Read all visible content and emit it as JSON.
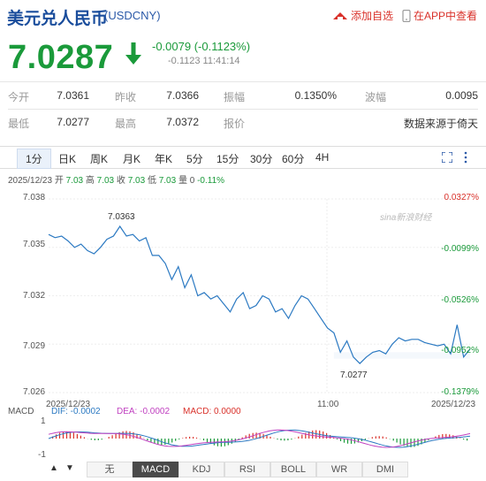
{
  "header": {
    "name": "美元兑人民币",
    "code": "(USDCNY)",
    "add_label": "添加自选",
    "app_label": "在APP中查看"
  },
  "quote": {
    "price": "7.0287",
    "change": "-0.0079 (-0.1123%)",
    "sub": "-0.1123 11:41:14"
  },
  "stats": {
    "row1": [
      {
        "label": "今开",
        "value": "7.0361"
      },
      {
        "label": "昨收",
        "value": "7.0366"
      },
      {
        "label": "振幅",
        "value": "0.1350%"
      },
      {
        "label": "波幅",
        "value": "0.0095"
      }
    ],
    "row2": [
      {
        "label": "最低",
        "value": "7.0277"
      },
      {
        "label": "最高",
        "value": "7.0372"
      },
      {
        "label": "报价",
        "value": "数据来源于倚天"
      }
    ]
  },
  "tabs": [
    "1分",
    "日K",
    "周K",
    "月K",
    "年K",
    "5分",
    "15分",
    "30分",
    "60分",
    "4H"
  ],
  "datebar": {
    "date": "2025/12/23",
    "open_l": "开",
    "open_v": "7.03",
    "high_l": "高",
    "high_v": "7.03",
    "close_l": "收",
    "close_v": "7.03",
    "low_l": "低",
    "low_v": "7.03",
    "vol_l": "量",
    "vol_v": "0",
    "pct": "-0.11%"
  },
  "watermark": "sina新浪财经",
  "chart_data": {
    "type": "line",
    "title": "",
    "yticks": [
      "7.038",
      "7.035",
      "7.032",
      "7.029",
      "7.026"
    ],
    "ylim": [
      7.026,
      7.038
    ],
    "pct_ticks": [
      "0.0327%",
      "-0.0099%",
      "-0.0526%",
      "-0.0952%",
      "-0.1379%"
    ],
    "xticks": [
      "2025/12/23",
      "11:00",
      "2025/12/23"
    ],
    "annotations": [
      {
        "text": "7.0363"
      },
      {
        "text": "7.0277"
      }
    ],
    "series": [
      {
        "values": [
          7.0358,
          7.0356,
          7.0357,
          7.0354,
          7.035,
          7.0352,
          7.0348,
          7.0346,
          7.035,
          7.0355,
          7.0357,
          7.0363,
          7.0357,
          7.0358,
          7.0354,
          7.0356,
          7.0345,
          7.0345,
          7.034,
          7.033,
          7.0338,
          7.0325,
          7.0333,
          7.032,
          7.0322,
          7.0318,
          7.032,
          7.0315,
          7.031,
          7.0318,
          7.0322,
          7.0312,
          7.0314,
          7.032,
          7.0318,
          7.031,
          7.0312,
          7.0306,
          7.0314,
          7.032,
          7.0318,
          7.0312,
          7.0306,
          7.03,
          7.0297,
          7.0285,
          7.0292,
          7.0282,
          7.0278,
          7.0282,
          7.0285,
          7.0286,
          7.0284,
          7.029,
          7.0294,
          7.0292,
          7.0293,
          7.0293,
          7.0291,
          7.029,
          7.0289,
          7.029,
          7.0284,
          7.0302,
          7.0282,
          7.0287
        ]
      }
    ]
  },
  "indicator": {
    "name": "MACD",
    "dif": "DIF: -0.0002",
    "dea": "DEA: -0.0002",
    "macd": "MACD: 0.0000",
    "top": "1",
    "bottom": "-1"
  },
  "buttons": [
    "无",
    "MACD",
    "KDJ",
    "RSI",
    "BOLL",
    "WR",
    "DMI"
  ],
  "colors": {
    "up": "#d9312a",
    "down": "#1a9a3a",
    "line": "#2b79c2",
    "blue": "#1a4d9c"
  }
}
